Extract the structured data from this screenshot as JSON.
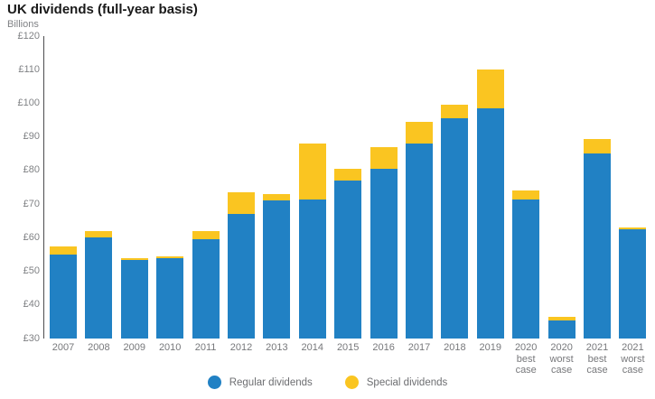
{
  "page": {
    "title": "UK dividends (full-year basis)",
    "axis_unit_label": "Billions"
  },
  "legend": {
    "items": [
      {
        "label": "Regular dividends",
        "color": "#2181C4"
      },
      {
        "label": "Special dividends",
        "color": "#FAC521"
      }
    ]
  },
  "colors": {
    "regular_bar": "#2181C4",
    "special_bar": "#FAC521",
    "title_text": "#1A1A1A",
    "axis_text": "#808285",
    "category_text": "#77787B",
    "axis_line": "#4D4D4F",
    "background": "#FFFFFF"
  },
  "chart_data": {
    "type": "bar",
    "stacked": true,
    "title": "UK dividends (full-year basis)",
    "ylabel": "Billions",
    "currency_prefix": "£",
    "ylim": [
      30,
      120
    ],
    "ytick_values": [
      120,
      110,
      100,
      90,
      80,
      70,
      60,
      50,
      40,
      30
    ],
    "ytick_labels": [
      "£120",
      "£110",
      "£100",
      "£90",
      "£80",
      "£70",
      "£60",
      "£50",
      "£40",
      "£30"
    ],
    "grid": false,
    "legend_position": "bottom",
    "categories": [
      "2007",
      "2008",
      "2009",
      "2010",
      "2011",
      "2012",
      "2013",
      "2014",
      "2015",
      "2016",
      "2017",
      "2018",
      "2019",
      "2020 best case",
      "2020 worst case",
      "2021 best case",
      "2021 worst case"
    ],
    "series": [
      {
        "name": "Regular dividends",
        "color": "#2181C4",
        "values": [
          55,
          60,
          53.5,
          54,
          59.5,
          67,
          71,
          71.5,
          77,
          80.5,
          88,
          95.5,
          98.5,
          71.5,
          35.5,
          85,
          62.5
        ]
      },
      {
        "name": "Special dividends",
        "color": "#FAC521",
        "values": [
          2.5,
          2,
          0.5,
          0.5,
          2.5,
          6.5,
          2,
          16.5,
          3.5,
          6.5,
          6.5,
          4,
          11.5,
          2.5,
          1,
          4.5,
          0.5
        ]
      }
    ],
    "totals": [
      57.5,
      62,
      54,
      54.5,
      62,
      73.5,
      73,
      88,
      80.5,
      87,
      94.5,
      99.5,
      110,
      74,
      36.5,
      89.5,
      63
    ]
  }
}
